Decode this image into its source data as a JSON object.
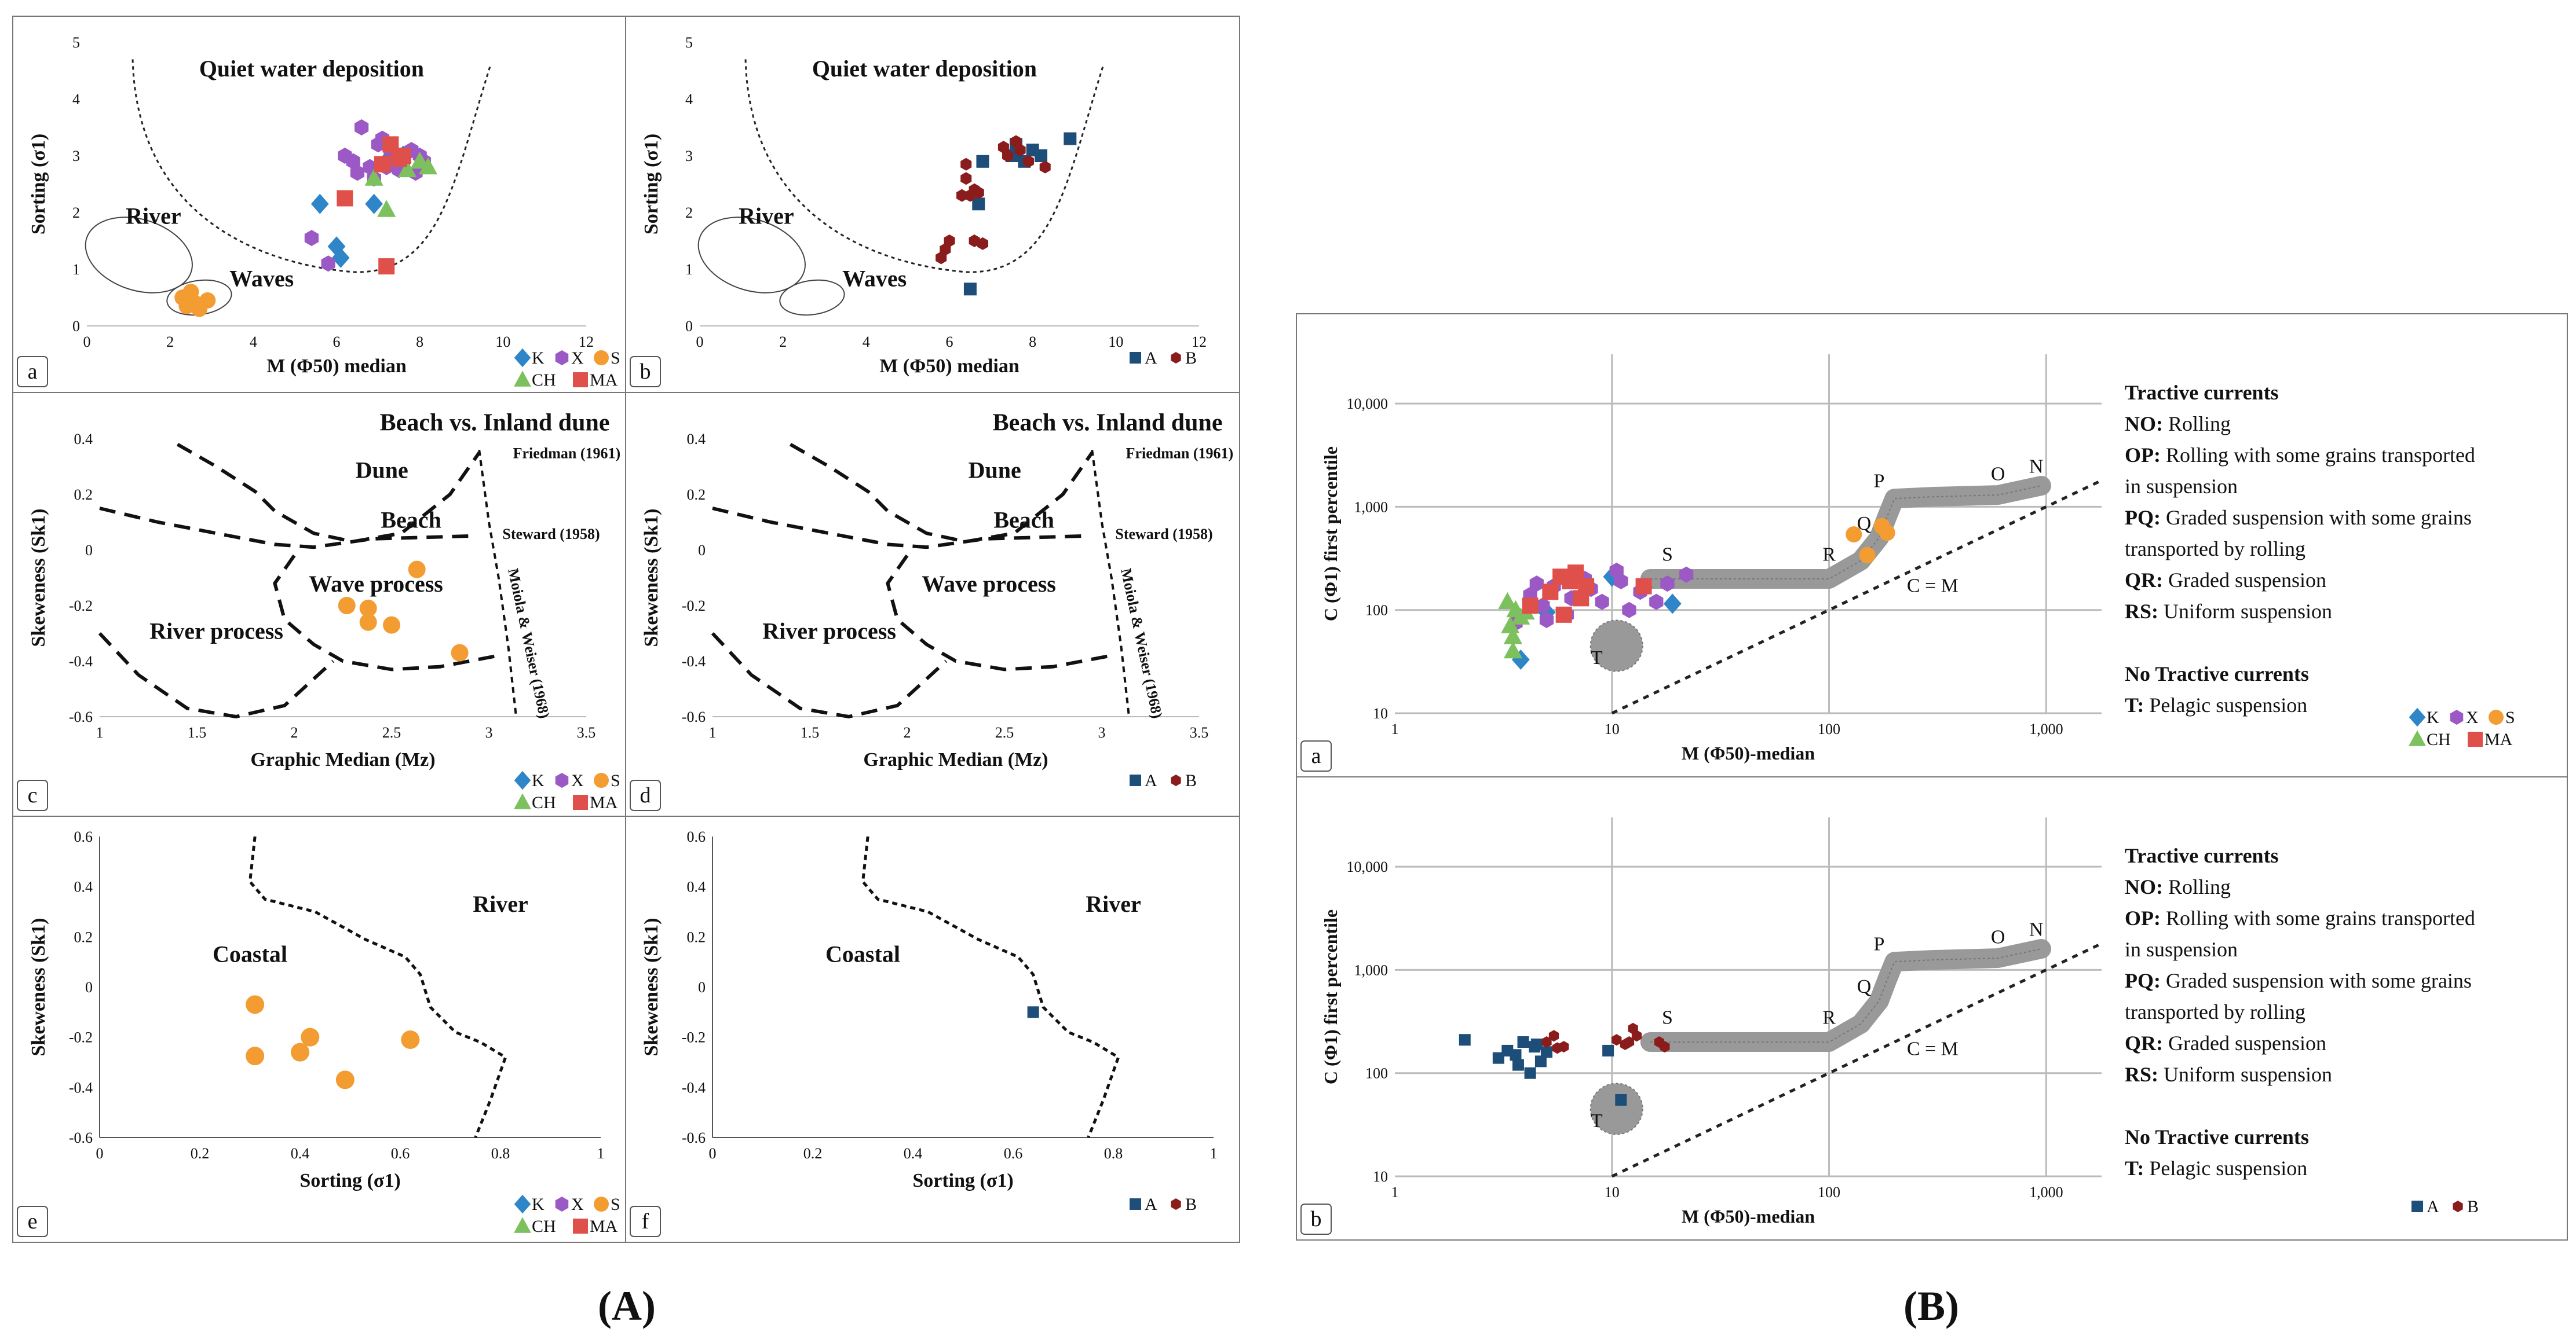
{
  "figure_labels": {
    "A": "(A)",
    "B": "(B)"
  },
  "legend": {
    "species": [
      {
        "name": "K",
        "color": "#2e86c8",
        "marker": "diamond"
      },
      {
        "name": "X",
        "color": "#9b59c6",
        "marker": "hexagon"
      },
      {
        "name": "S",
        "color": "#f39c32",
        "marker": "circle"
      },
      {
        "name": "CH",
        "color": "#7cc15e",
        "marker": "triangle"
      },
      {
        "name": "MA",
        "color": "#e0504a",
        "marker": "square"
      }
    ],
    "groups": [
      {
        "name": "A",
        "color": "#1d4e79",
        "marker": "square"
      },
      {
        "name": "B",
        "color": "#8b1c1c",
        "marker": "hexagon"
      }
    ]
  },
  "chart_data": [
    {
      "id": "a",
      "panel_letter": "a",
      "type": "scatter",
      "legend_type": "species",
      "xlabel": "M (Φ50) median",
      "ylabel": "Sorting (σ1)",
      "xlim": [
        0,
        12
      ],
      "ylim": [
        0,
        5
      ],
      "xticks": [
        "0",
        "2",
        "4",
        "6",
        "8",
        "10",
        "12"
      ],
      "yticks": [
        "0",
        "1",
        "2",
        "3",
        "4",
        "5"
      ],
      "annotations": [
        "Quiet water deposition",
        "River",
        "Waves"
      ],
      "series": [
        {
          "name": "K",
          "points": [
            [
              5.6,
              2.15
            ],
            [
              6.0,
              1.4
            ],
            [
              6.1,
              1.2
            ],
            [
              6.9,
              2.15
            ],
            [
              7.2,
              2.9
            ],
            [
              7.6,
              3.0
            ]
          ]
        },
        {
          "name": "X",
          "points": [
            [
              5.4,
              1.55
            ],
            [
              5.8,
              1.1
            ],
            [
              6.6,
              3.5
            ],
            [
              6.2,
              3.0
            ],
            [
              6.8,
              2.8
            ],
            [
              7.0,
              3.2
            ],
            [
              7.2,
              2.8
            ],
            [
              7.4,
              3.0
            ],
            [
              7.6,
              2.9
            ],
            [
              7.8,
              3.1
            ],
            [
              7.9,
              2.7
            ],
            [
              8.0,
              3.0
            ],
            [
              8.1,
              2.9
            ],
            [
              6.5,
              2.7
            ],
            [
              7.1,
              3.3
            ],
            [
              7.5,
              2.75
            ],
            [
              6.4,
              2.9
            ],
            [
              7.3,
              3.1
            ],
            [
              6.9,
              2.6
            ]
          ]
        },
        {
          "name": "S",
          "points": [
            [
              2.3,
              0.5
            ],
            [
              2.5,
              0.6
            ],
            [
              2.6,
              0.4
            ],
            [
              2.9,
              0.45
            ],
            [
              2.7,
              0.3
            ],
            [
              2.4,
              0.35
            ]
          ]
        },
        {
          "name": "CH",
          "points": [
            [
              7.2,
              2.05
            ],
            [
              8.2,
              2.8
            ],
            [
              8.0,
              2.9
            ],
            [
              7.7,
              2.75
            ],
            [
              6.9,
              2.6
            ]
          ]
        },
        {
          "name": "MA",
          "points": [
            [
              6.2,
              2.25
            ],
            [
              7.3,
              3.2
            ],
            [
              7.5,
              2.95
            ],
            [
              7.2,
              1.05
            ],
            [
              7.6,
              3.0
            ],
            [
              7.1,
              2.85
            ]
          ]
        }
      ]
    },
    {
      "id": "b",
      "panel_letter": "b",
      "type": "scatter",
      "legend_type": "groups",
      "xlabel": "M (Φ50) median",
      "ylabel": "Sorting (σ1)",
      "xlim": [
        0,
        12
      ],
      "ylim": [
        0,
        5
      ],
      "xticks": [
        "0",
        "2",
        "4",
        "6",
        "8",
        "10",
        "12"
      ],
      "yticks": [
        "0",
        "1",
        "2",
        "3",
        "4",
        "5"
      ],
      "annotations": [
        "Quiet water deposition",
        "River",
        "Waves"
      ],
      "series": [
        {
          "name": "A",
          "points": [
            [
              6.5,
              0.65
            ],
            [
              6.7,
              2.15
            ],
            [
              7.6,
              3.2
            ],
            [
              7.8,
              2.9
            ],
            [
              8.0,
              3.1
            ],
            [
              8.2,
              3.0
            ],
            [
              8.9,
              3.3
            ],
            [
              7.5,
              3.0
            ],
            [
              6.8,
              2.9
            ]
          ]
        },
        {
          "name": "B",
          "points": [
            [
              5.8,
              1.2
            ],
            [
              5.9,
              1.35
            ],
            [
              6.0,
              1.5
            ],
            [
              6.3,
              2.3
            ],
            [
              6.5,
              2.3
            ],
            [
              6.6,
              2.4
            ],
            [
              6.7,
              2.35
            ],
            [
              6.4,
              2.6
            ],
            [
              6.4,
              2.85
            ],
            [
              6.6,
              1.5
            ],
            [
              6.8,
              1.45
            ],
            [
              7.4,
              3.0
            ],
            [
              7.6,
              3.25
            ],
            [
              7.7,
              3.1
            ],
            [
              7.9,
              2.9
            ],
            [
              8.3,
              2.8
            ],
            [
              7.3,
              3.15
            ]
          ]
        }
      ]
    },
    {
      "id": "c",
      "panel_letter": "c",
      "type": "scatter",
      "legend_type": "species",
      "xlabel": "Graphic Median (Mz)",
      "ylabel": "Skeweness (Sk1)",
      "xlim": [
        1,
        3.5
      ],
      "ylim": [
        -0.6,
        0.4
      ],
      "xticks": [
        "1",
        "1.5",
        "2",
        "2.5",
        "3",
        "3.5"
      ],
      "yticks": [
        "-0.6",
        "-0.4",
        "-0.2",
        "0",
        "0.2",
        "0.4"
      ],
      "annotations": [
        "Beach vs. Inland dune",
        "Dune",
        "Beach",
        "Wave process",
        "River process",
        "Friedman (1961)",
        "Steward (1958)",
        "Moiola & Weiser (1968)"
      ],
      "series": [
        {
          "name": "S",
          "points": [
            [
              2.27,
              -0.2
            ],
            [
              2.38,
              -0.21
            ],
            [
              2.38,
              -0.26
            ],
            [
              2.5,
              -0.27
            ],
            [
              2.63,
              -0.07
            ],
            [
              2.85,
              -0.37
            ]
          ]
        }
      ]
    },
    {
      "id": "d",
      "panel_letter": "d",
      "type": "scatter",
      "legend_type": "groups",
      "xlabel": "Graphic Median (Mz)",
      "ylabel": "Skeweness (Sk1)",
      "xlim": [
        1,
        3.5
      ],
      "ylim": [
        -0.6,
        0.4
      ],
      "xticks": [
        "1",
        "1.5",
        "2",
        "2.5",
        "3",
        "3.5"
      ],
      "yticks": [
        "-0.6",
        "-0.4",
        "-0.2",
        "0",
        "0.2",
        "0.4"
      ],
      "annotations": [
        "Beach vs. Inland dune",
        "Dune",
        "Beach",
        "Wave process",
        "River process",
        "Friedman (1961)",
        "Steward (1958)",
        "Moiola & Weiser (1968)"
      ],
      "series": []
    },
    {
      "id": "e",
      "panel_letter": "e",
      "type": "scatter",
      "legend_type": "species",
      "xlabel": "Sorting (σ1)",
      "ylabel": "Skeweness (Sk1)",
      "xlim": [
        0,
        1
      ],
      "ylim": [
        -0.6,
        0.6
      ],
      "xticks": [
        "0",
        "0.2",
        "0.4",
        "0.6",
        "0.8",
        "1"
      ],
      "yticks": [
        "-0.6",
        "-0.4",
        "-0.2",
        "0",
        "0.2",
        "0.4",
        "0.6"
      ],
      "annotations": [
        "River",
        "Coastal"
      ],
      "series": [
        {
          "name": "S",
          "points": [
            [
              0.31,
              -0.07
            ],
            [
              0.31,
              -0.275
            ],
            [
              0.4,
              -0.26
            ],
            [
              0.42,
              -0.2
            ],
            [
              0.49,
              -0.37
            ],
            [
              0.62,
              -0.21
            ]
          ]
        }
      ]
    },
    {
      "id": "f",
      "panel_letter": "f",
      "type": "scatter",
      "legend_type": "groups",
      "xlabel": "Sorting (σ1)",
      "ylabel": "Skeweness (Sk1)",
      "xlim": [
        0,
        1
      ],
      "ylim": [
        -0.6,
        0.6
      ],
      "xticks": [
        "0",
        "0.2",
        "0.4",
        "0.6",
        "0.8",
        "1"
      ],
      "yticks": [
        "-0.6",
        "-0.4",
        "-0.2",
        "0",
        "0.2",
        "0.4",
        "0.6"
      ],
      "annotations": [
        "River",
        "Coastal"
      ],
      "series": [
        {
          "name": "A",
          "points": [
            [
              0.64,
              -0.1
            ]
          ]
        }
      ]
    },
    {
      "id": "Ba",
      "panel_letter": "a",
      "type": "scatter",
      "scale": "log",
      "legend_type": "species",
      "xlabel": "M (Φ50)-median",
      "ylabel": "C (Φ1) first percentile",
      "xlim": [
        1,
        1800
      ],
      "ylim": [
        10,
        30000
      ],
      "xticks": [
        "1",
        "10",
        "100",
        "1,000"
      ],
      "yticks": [
        "10",
        "100",
        "1,000",
        "10,000"
      ],
      "segment_labels": [
        "N",
        "O",
        "P",
        "Q",
        "R",
        "S",
        "T",
        "C = M"
      ],
      "series": [
        {
          "name": "K",
          "points": [
            [
              3.8,
              33
            ],
            [
              19,
              115
            ],
            [
              14,
              165
            ],
            [
              10,
              210
            ],
            [
              5,
              95
            ]
          ]
        },
        {
          "name": "X",
          "points": [
            [
              3.6,
              75
            ],
            [
              4.2,
              140
            ],
            [
              4.8,
              110
            ],
            [
              5.4,
              170
            ],
            [
              6.2,
              90
            ],
            [
              7.5,
              200
            ],
            [
              9,
              120
            ],
            [
              10.5,
              240
            ],
            [
              12,
              100
            ],
            [
              13.5,
              150
            ],
            [
              16,
              120
            ],
            [
              18,
              180
            ],
            [
              22,
              220
            ],
            [
              8,
              160
            ],
            [
              6.5,
              130
            ],
            [
              5,
              80
            ],
            [
              11,
              190
            ],
            [
              4.5,
              180
            ]
          ]
        },
        {
          "name": "S",
          "points": [
            [
              130,
              540
            ],
            [
              150,
              340
            ],
            [
              175,
              650
            ],
            [
              185,
              560
            ]
          ]
        },
        {
          "name": "CH",
          "points": [
            [
              3.3,
              120
            ],
            [
              3.5,
              40
            ],
            [
              3.6,
              100
            ],
            [
              3.4,
              70
            ],
            [
              3.8,
              85
            ],
            [
              3.5,
              55
            ],
            [
              4.0,
              95
            ]
          ]
        },
        {
          "name": "MA",
          "points": [
            [
              4.2,
              110
            ],
            [
              5.2,
              150
            ],
            [
              6.4,
              190
            ],
            [
              6.8,
              230
            ],
            [
              7.2,
              130
            ],
            [
              7.6,
              170
            ],
            [
              6.0,
              90
            ],
            [
              14,
              170
            ],
            [
              5.8,
              210
            ]
          ]
        }
      ],
      "description": {
        "tractive_title": "Tractive currents",
        "items": [
          {
            "code": "NO:",
            "text": "Rolling"
          },
          {
            "code": "OP:",
            "text": "Rolling with some grains transported"
          },
          {
            "code": "",
            "text": " in suspension"
          },
          {
            "code": "PQ:",
            "text": "Graded suspension with some grains"
          },
          {
            "code": "",
            "text": "transported by rolling"
          },
          {
            "code": "QR:",
            "text": "Graded suspension"
          },
          {
            "code": "RS:",
            "text": "Uniform suspension"
          }
        ],
        "no_tractive_title": "No Tractive currents",
        "no_tractive_code": "T:",
        "no_tractive_text": "Pelagic suspension"
      }
    },
    {
      "id": "Bb",
      "panel_letter": "b",
      "type": "scatter",
      "scale": "log",
      "legend_type": "groups",
      "xlabel": "M (Φ50)-median",
      "ylabel": "C (Φ1) first percentile",
      "xlim": [
        1,
        1800
      ],
      "ylim": [
        10,
        30000
      ],
      "xticks": [
        "1",
        "10",
        "100",
        "1,000"
      ],
      "yticks": [
        "10",
        "100",
        "1,000",
        "10,000"
      ],
      "segment_labels": [
        "N",
        "O",
        "P",
        "Q",
        "R",
        "S",
        "T",
        "C = M"
      ],
      "series": [
        {
          "name": "A",
          "points": [
            [
              2.1,
              210
            ],
            [
              3.0,
              140
            ],
            [
              3.3,
              165
            ],
            [
              3.6,
              150
            ],
            [
              3.9,
              200
            ],
            [
              4.2,
              100
            ],
            [
              4.4,
              180
            ],
            [
              4.7,
              130
            ],
            [
              5.0,
              160
            ],
            [
              3.7,
              120
            ],
            [
              4.5,
              190
            ],
            [
              9.6,
              165
            ],
            [
              11,
              55
            ]
          ]
        },
        {
          "name": "B",
          "points": [
            [
              5.0,
              200
            ],
            [
              5.4,
              230
            ],
            [
              6.0,
              180
            ],
            [
              10.5,
              210
            ],
            [
              11.5,
              190
            ],
            [
              12.5,
              270
            ],
            [
              13,
              230
            ],
            [
              16.5,
              200
            ],
            [
              17.5,
              180
            ],
            [
              5.6,
              175
            ],
            [
              12,
              200
            ]
          ]
        }
      ],
      "description": {
        "tractive_title": "Tractive currents",
        "items": [
          {
            "code": "NO:",
            "text": "Rolling"
          },
          {
            "code": "OP:",
            "text": "Rolling with some grains transported"
          },
          {
            "code": "",
            "text": " in suspension"
          },
          {
            "code": "PQ:",
            "text": "Graded suspension with some grains"
          },
          {
            "code": "",
            "text": "transported by rolling"
          },
          {
            "code": "QR:",
            "text": "Graded suspension"
          },
          {
            "code": "RS:",
            "text": "Uniform suspension"
          }
        ],
        "no_tractive_title": "No Tractive currents",
        "no_tractive_code": "T:",
        "no_tractive_text": "Pelagic suspension"
      }
    }
  ]
}
